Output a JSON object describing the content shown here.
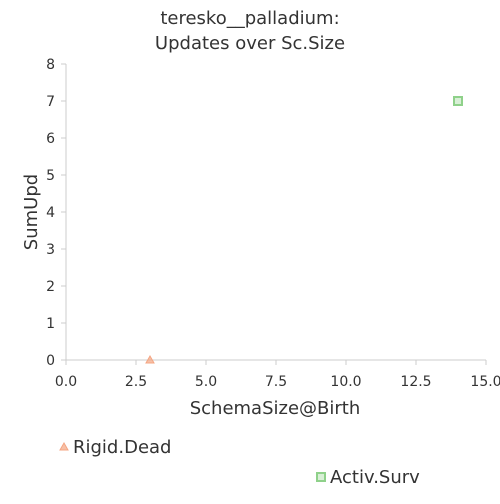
{
  "chart_data": {
    "type": "scatter",
    "title": [
      "teresko__palladium:",
      "Updates over Sc.Size"
    ],
    "xlabel": "SchemaSize@Birth",
    "ylabel": "SumUpd",
    "xlim": [
      0,
      15
    ],
    "ylim": [
      0,
      8
    ],
    "x_ticks": [
      {
        "value": 0,
        "label": "0.0"
      },
      {
        "value": 2.5,
        "label": "2.5"
      },
      {
        "value": 5,
        "label": "5.0"
      },
      {
        "value": 7.5,
        "label": "7.5"
      },
      {
        "value": 10,
        "label": "10.0"
      },
      {
        "value": 12.5,
        "label": "12.5"
      },
      {
        "value": 15,
        "label": "15.0"
      }
    ],
    "y_ticks": [
      {
        "value": 0,
        "label": "0"
      },
      {
        "value": 1,
        "label": "1"
      },
      {
        "value": 2,
        "label": "2"
      },
      {
        "value": 3,
        "label": "3"
      },
      {
        "value": 4,
        "label": "4"
      },
      {
        "value": 5,
        "label": "5"
      },
      {
        "value": 6,
        "label": "6"
      },
      {
        "value": 7,
        "label": "7"
      },
      {
        "value": 8,
        "label": "8"
      }
    ],
    "grid": false,
    "legend_position": "bottom",
    "series": [
      {
        "name": "Rigid.Dead",
        "marker": "triangle",
        "color": "#f4a582",
        "points": [
          {
            "x": 3,
            "y": 0
          }
        ]
      },
      {
        "name": "Activ.Surv",
        "marker": "square",
        "color": "#8fd18a",
        "points": [
          {
            "x": 14,
            "y": 7
          }
        ]
      }
    ]
  }
}
